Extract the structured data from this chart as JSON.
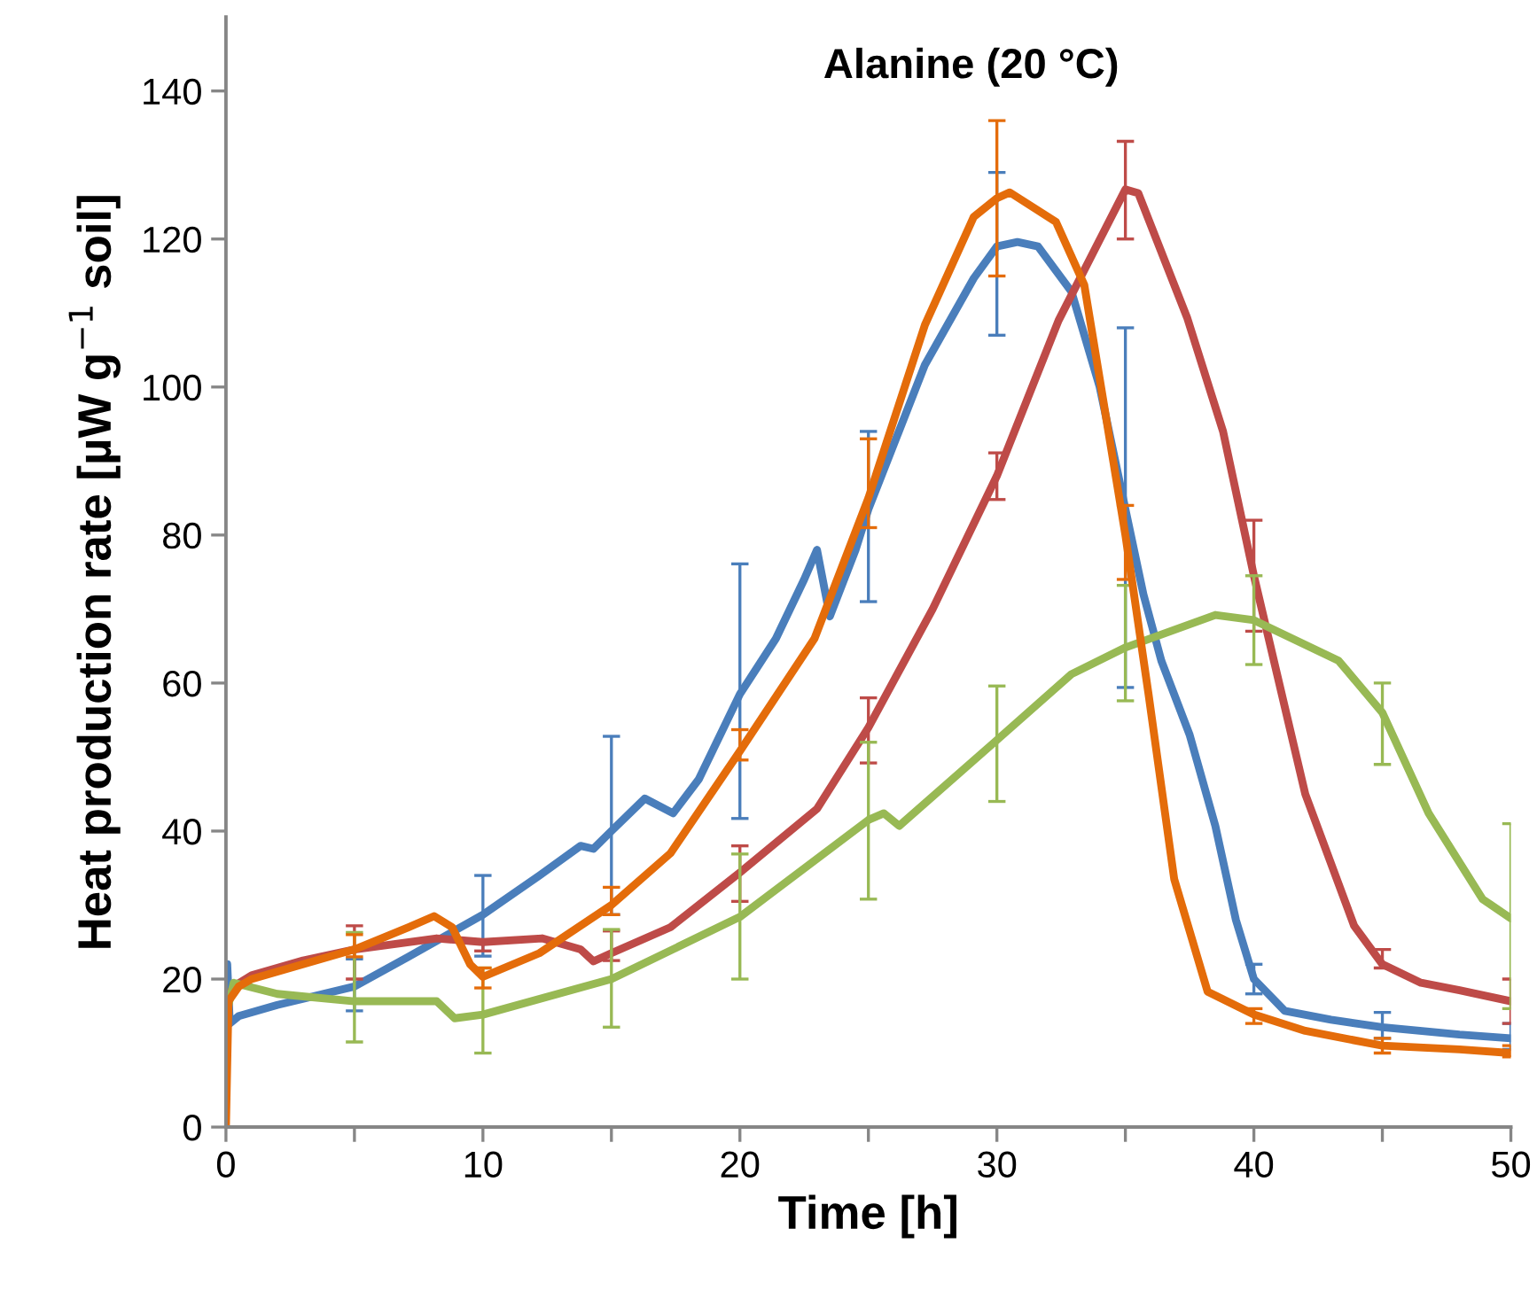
{
  "chart_data": {
    "type": "line",
    "title": "Alanine (20 °C)",
    "xlabel": "Time [h]",
    "ylabel": "Heat production rate [µW g$^{−1}$ soil]",
    "xlim": [
      0,
      50
    ],
    "ylim": [
      0,
      150
    ],
    "xticks": [
      0,
      {
        "value": 5,
        "label": null
      },
      10,
      {
        "value": 15,
        "label": null
      },
      20,
      {
        "value": 25,
        "label": null
      },
      30,
      {
        "value": 35,
        "label": null
      },
      40,
      {
        "value": 45,
        "label": null
      },
      50
    ],
    "yticks": [
      0,
      20,
      40,
      60,
      80,
      100,
      120,
      140
    ],
    "grid": false,
    "marker": "none",
    "line_style": "solid",
    "series": [
      {
        "color": "#4a7ebb",
        "x": [
          0,
          0.05,
          0.15,
          0.5,
          2,
          5,
          7.1,
          10,
          12.2,
          13.8,
          14.3,
          15,
          16.3,
          17.4,
          18.4,
          20,
          21.4,
          22.5,
          23,
          23.5,
          24.5,
          25,
          27.2,
          29.1,
          30,
          30.8,
          31.6,
          32.9,
          34,
          35,
          35.7,
          36.4,
          37.5,
          38.5,
          39.3,
          40,
          41.2,
          43,
          45,
          48,
          50
        ],
        "values": [
          13,
          22,
          14,
          15,
          16.5,
          19,
          23,
          28.7,
          34,
          38,
          37.6,
          40,
          44.4,
          42.4,
          47,
          58.5,
          66,
          74,
          78,
          69,
          78,
          83.5,
          103,
          114.7,
          119,
          119.6,
          119,
          112.9,
          100,
          83.5,
          72,
          63,
          53,
          40.7,
          28,
          20,
          15.7,
          14.5,
          13.5,
          12.5,
          12
        ],
        "errors": [
          null,
          null,
          null,
          null,
          null,
          [
            15.7,
            22.7
          ],
          null,
          [
            23.1,
            34
          ],
          null,
          null,
          null,
          [
            28.7,
            52.8
          ],
          null,
          null,
          null,
          [
            41.7,
            76.1
          ],
          null,
          null,
          null,
          null,
          null,
          [
            71,
            94
          ],
          null,
          null,
          [
            107,
            129
          ],
          null,
          null,
          null,
          null,
          [
            59.4,
            108
          ],
          null,
          null,
          null,
          null,
          null,
          [
            18,
            22
          ],
          null,
          null,
          [
            12,
            15.5
          ],
          null,
          [
            10.5,
            14
          ]
        ]
      },
      {
        "color": "#be4b48",
        "x": [
          0,
          0.3,
          1,
          3,
          5,
          8.2,
          10,
          12.3,
          13.8,
          14.3,
          15,
          17.3,
          20,
          23,
          25,
          27.5,
          30,
          32.4,
          35,
          35.5,
          37.4,
          38.8,
          40,
          42,
          43.9,
          45,
          46.5,
          48,
          50
        ],
        "values": [
          17,
          19,
          20.5,
          22.5,
          24,
          25.5,
          25,
          25.5,
          24,
          22.4,
          23.5,
          27,
          34.4,
          43,
          54,
          70,
          88,
          109,
          126.7,
          126.2,
          109.4,
          94,
          74.5,
          45,
          27.2,
          22,
          19.5,
          18.5,
          17
        ],
        "errors": [
          null,
          null,
          null,
          null,
          [
            20,
            27.2
          ],
          null,
          [
            23.8,
            25.2
          ],
          null,
          null,
          null,
          [
            22.5,
            26.5
          ],
          null,
          [
            30.5,
            38
          ],
          null,
          [
            49.2,
            58
          ],
          null,
          [
            84.8,
            91.1
          ],
          null,
          [
            120,
            133.2
          ],
          null,
          null,
          null,
          [
            67,
            82
          ],
          null,
          null,
          [
            21.5,
            24
          ],
          null,
          null,
          [
            14,
            20
          ]
        ]
      },
      {
        "color": "#98b954",
        "x": [
          0,
          0.3,
          2,
          5,
          8.2,
          8.9,
          10,
          15,
          20,
          25,
          25.6,
          26.2,
          30,
          32.9,
          35,
          38.5,
          40,
          43.3,
          45,
          46.8,
          48.9,
          50
        ],
        "values": [
          15,
          19.5,
          18,
          17,
          17,
          14.7,
          15.2,
          20,
          28.4,
          41.5,
          42.4,
          40.7,
          52.3,
          61.2,
          64.8,
          69.2,
          68.5,
          63,
          56,
          42.4,
          30.8,
          28.2
        ],
        "errors": [
          null,
          null,
          null,
          [
            11.5,
            26.3
          ],
          null,
          null,
          [
            10,
            21.5
          ],
          [
            13.5,
            26.7
          ],
          [
            20,
            36.9
          ],
          [
            30.8,
            52
          ],
          null,
          null,
          [
            44,
            59.6
          ],
          null,
          [
            57.6,
            73.2
          ],
          null,
          [
            62.5,
            74.5
          ],
          null,
          [
            49,
            60
          ],
          null,
          null,
          [
            16,
            41
          ]
        ]
      },
      {
        "color": "#e46c0a",
        "x": [
          0,
          0.1,
          0.5,
          1,
          3,
          5,
          7.1,
          8.1,
          8.8,
          9.5,
          10,
          12.2,
          15,
          17.3,
          20,
          22.9,
          25,
          27.2,
          29.1,
          30,
          30.5,
          32.3,
          33.4,
          35,
          35.9,
          36.9,
          38.2,
          40,
          42,
          45,
          48,
          50
        ],
        "values": [
          0,
          17,
          19,
          20,
          22,
          24,
          27,
          28.5,
          27,
          22,
          20.3,
          23.5,
          30,
          37,
          50.8,
          66,
          85,
          108.4,
          123,
          125.5,
          126.3,
          122.3,
          113.8,
          80,
          58.5,
          33.5,
          18.3,
          15.2,
          13,
          11,
          10.5,
          10
        ],
        "errors": [
          null,
          null,
          null,
          null,
          null,
          [
            23,
            26
          ],
          null,
          null,
          null,
          null,
          [
            18.8,
            21.5
          ],
          null,
          [
            28.7,
            32.4
          ],
          null,
          [
            49.6,
            53.7
          ],
          null,
          [
            81,
            93
          ],
          null,
          null,
          [
            115,
            136
          ],
          null,
          null,
          null,
          [
            74,
            84
          ],
          null,
          null,
          null,
          [
            14,
            16
          ],
          null,
          [
            10,
            12
          ],
          null,
          [
            9.5,
            11
          ]
        ]
      }
    ]
  }
}
